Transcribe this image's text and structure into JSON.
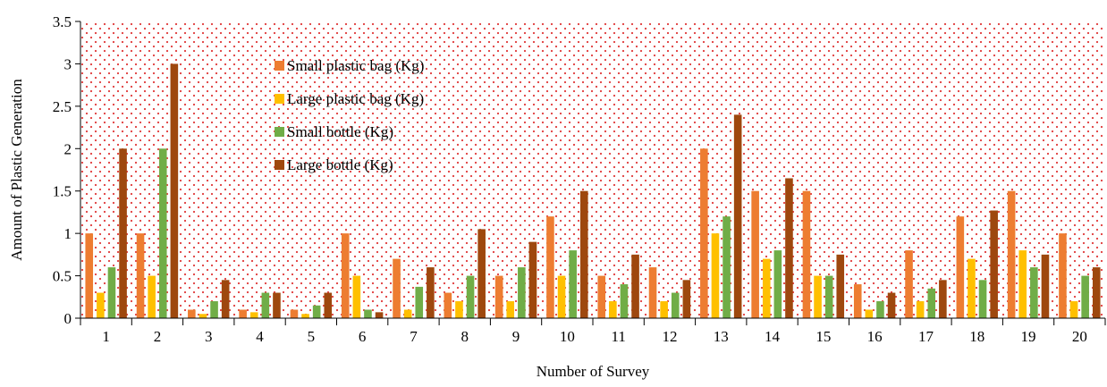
{
  "chart_data": {
    "type": "bar",
    "xlabel": "Number of Survey",
    "ylabel": "Amount of Plastic Generation",
    "ylim": [
      0,
      3.5
    ],
    "yticks": [
      "0",
      "0.5",
      "1",
      "1.5",
      "2",
      "2.5",
      "3",
      "3.5"
    ],
    "categories": [
      "1",
      "2",
      "3",
      "4",
      "5",
      "6",
      "7",
      "8",
      "9",
      "10",
      "11",
      "12",
      "13",
      "14",
      "15",
      "16",
      "17",
      "18",
      "19",
      "20"
    ],
    "grid": false,
    "plot_background": "red-dotted",
    "legend_position": "top-left-center",
    "series": [
      {
        "name": "Small plastic bag (Kg)",
        "color": "#ED7D31",
        "values": [
          1.0,
          1.0,
          0.1,
          0.1,
          0.1,
          1.0,
          0.7,
          0.3,
          0.5,
          1.2,
          0.5,
          0.6,
          2.0,
          1.5,
          1.5,
          0.4,
          0.8,
          1.2,
          1.5,
          1.0
        ]
      },
      {
        "name": "Large plastic bag (Kg)",
        "color": "#FFC000",
        "values": [
          0.3,
          0.5,
          0.05,
          0.07,
          0.05,
          0.5,
          0.1,
          0.2,
          0.2,
          0.5,
          0.2,
          0.2,
          1.0,
          0.7,
          0.5,
          0.1,
          0.2,
          0.7,
          0.8,
          0.2
        ]
      },
      {
        "name": "Small bottle (Kg)",
        "color": "#70AD47",
        "values": [
          0.6,
          2.0,
          0.2,
          0.3,
          0.15,
          0.1,
          0.37,
          0.5,
          0.6,
          0.8,
          0.4,
          0.3,
          1.2,
          0.8,
          0.5,
          0.2,
          0.35,
          0.45,
          0.6,
          0.5
        ]
      },
      {
        "name": "Large bottle (Kg)",
        "color": "#9E480E",
        "values": [
          2.0,
          3.0,
          0.45,
          0.3,
          0.3,
          0.07,
          0.6,
          1.05,
          0.9,
          1.5,
          0.75,
          0.45,
          2.4,
          1.65,
          0.75,
          0.3,
          0.45,
          1.27,
          0.75,
          0.6
        ]
      }
    ]
  }
}
